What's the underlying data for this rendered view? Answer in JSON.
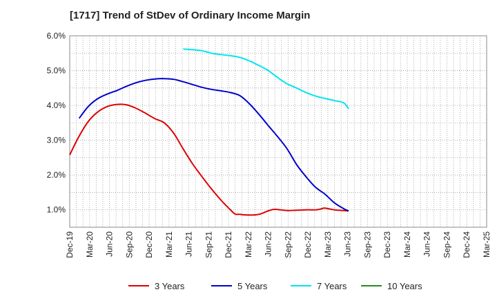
{
  "chart_data": {
    "type": "line",
    "title": "[1717]  Trend of StDev of Ordinary Income Margin",
    "xlabel": "",
    "ylabel": "",
    "x_ticks": [
      "Dec-19",
      "Mar-20",
      "Jun-20",
      "Sep-20",
      "Dec-20",
      "Mar-21",
      "Jun-21",
      "Sep-21",
      "Dec-21",
      "Mar-22",
      "Jun-22",
      "Sep-22",
      "Dec-22",
      "Mar-23",
      "Jun-23",
      "Sep-23",
      "Dec-23",
      "Mar-24",
      "Jun-24",
      "Sep-24",
      "Dec-24",
      "Mar-25"
    ],
    "y_ticks": [
      "1.0%",
      "2.0%",
      "3.0%",
      "4.0%",
      "5.0%",
      "6.0%"
    ],
    "ylim": [
      0.5,
      6.0
    ],
    "grid": true,
    "legend_position": "bottom",
    "series": [
      {
        "name": "3 Years",
        "color": "#dd0000",
        "points": [
          [
            0,
            2.58
          ],
          [
            1,
            3.12
          ],
          [
            2,
            3.55
          ],
          [
            3,
            3.82
          ],
          [
            4,
            3.97
          ],
          [
            5,
            4.03
          ],
          [
            6,
            4.02
          ],
          [
            7,
            3.92
          ],
          [
            8,
            3.78
          ],
          [
            9,
            3.62
          ],
          [
            10,
            3.5
          ],
          [
            11,
            3.2
          ],
          [
            12,
            2.75
          ],
          [
            13,
            2.32
          ],
          [
            14,
            1.95
          ],
          [
            15,
            1.6
          ],
          [
            16,
            1.28
          ],
          [
            17,
            1.0
          ],
          [
            17.5,
            0.88
          ],
          [
            18,
            0.87
          ],
          [
            19,
            0.85
          ],
          [
            20,
            0.87
          ],
          [
            21,
            0.97
          ],
          [
            21.5,
            1.01
          ],
          [
            22,
            1.01
          ],
          [
            23,
            0.98
          ],
          [
            24,
            0.99
          ],
          [
            25,
            1.0
          ],
          [
            26,
            1.0
          ],
          [
            26.5,
            1.02
          ],
          [
            27,
            1.05
          ],
          [
            28,
            1.0
          ],
          [
            29,
            0.98
          ],
          [
            29.5,
            0.97
          ]
        ]
      },
      {
        "name": "5 Years",
        "color": "#0000cc",
        "points": [
          [
            1,
            3.63
          ],
          [
            2,
            3.98
          ],
          [
            3,
            4.2
          ],
          [
            4,
            4.33
          ],
          [
            5,
            4.43
          ],
          [
            6,
            4.55
          ],
          [
            7,
            4.65
          ],
          [
            8,
            4.72
          ],
          [
            9,
            4.76
          ],
          [
            10,
            4.77
          ],
          [
            11,
            4.75
          ],
          [
            12,
            4.68
          ],
          [
            13,
            4.6
          ],
          [
            14,
            4.52
          ],
          [
            15,
            4.46
          ],
          [
            16,
            4.42
          ],
          [
            17,
            4.37
          ],
          [
            18,
            4.28
          ],
          [
            19,
            4.05
          ],
          [
            20,
            3.75
          ],
          [
            21,
            3.42
          ],
          [
            22,
            3.1
          ],
          [
            23,
            2.75
          ],
          [
            24,
            2.3
          ],
          [
            25,
            1.95
          ],
          [
            26,
            1.65
          ],
          [
            27,
            1.45
          ],
          [
            28,
            1.2
          ],
          [
            29,
            1.03
          ],
          [
            29.5,
            0.97
          ]
        ]
      },
      {
        "name": "7 Years",
        "color": "#00e5ee",
        "points": [
          [
            12,
            5.62
          ],
          [
            13,
            5.6
          ],
          [
            14,
            5.57
          ],
          [
            15,
            5.5
          ],
          [
            16,
            5.46
          ],
          [
            17,
            5.43
          ],
          [
            18,
            5.38
          ],
          [
            19,
            5.28
          ],
          [
            20,
            5.15
          ],
          [
            21,
            5.0
          ],
          [
            22,
            4.8
          ],
          [
            23,
            4.62
          ],
          [
            24,
            4.5
          ],
          [
            25,
            4.37
          ],
          [
            26,
            4.27
          ],
          [
            27,
            4.2
          ],
          [
            28,
            4.14
          ],
          [
            29,
            4.07
          ],
          [
            29.5,
            3.9
          ]
        ]
      },
      {
        "name": "10 Years",
        "color": "#228b22",
        "points": []
      }
    ]
  }
}
